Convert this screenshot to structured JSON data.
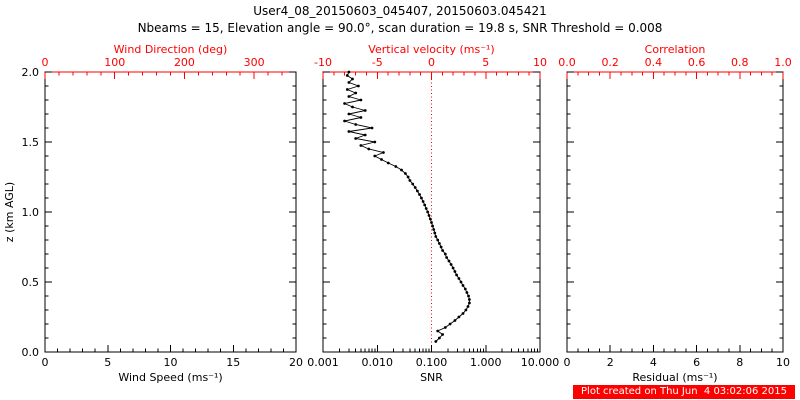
{
  "title": "User4_08_20150603_045407, 20150603.045421",
  "subtitle": "Nbeams = 15, Elevation angle = 90.0°, scan duration = 19.8 s, SNR Threshold = 0.008",
  "footer": {
    "text": "Plot created on Thu Jun  4 03:02:06 2015"
  },
  "colors": {
    "axis": "#000000",
    "secondary": "#ff0000",
    "footer_bg": "#ff0000",
    "footer_fg": "#ffffff"
  },
  "chart_data": [
    {
      "type": "line",
      "panel": "wind-speed",
      "xlabel": "Wind Speed (ms⁻¹)",
      "x2label": "Wind Direction (deg)",
      "ylabel": "z (km AGL)",
      "xlim": [
        0,
        20
      ],
      "xticks": [
        0,
        5,
        10,
        15,
        20
      ],
      "xtick_labels": [
        "0",
        "5",
        "10",
        "15",
        "20"
      ],
      "xminor": 1,
      "x2lim": [
        0,
        360
      ],
      "x2ticks": [
        0,
        100,
        200,
        300
      ],
      "x2tick_labels": [
        "0",
        "100",
        "200",
        "300"
      ],
      "x2minor": 20,
      "ylim": [
        0,
        2
      ],
      "yticks": [
        0,
        0.5,
        1,
        1.5,
        2
      ],
      "ytick_labels": [
        "0.0",
        "0.5",
        "1.0",
        "1.5",
        "2.0"
      ],
      "yminor": 0.1,
      "series": []
    },
    {
      "type": "line",
      "panel": "snr",
      "xlabel": "SNR",
      "x2label": "Vertical velocity (ms⁻¹)",
      "xscale": "log",
      "xlim": [
        0.001,
        10
      ],
      "xticks": [
        0.001,
        0.01,
        0.1,
        1,
        10
      ],
      "xtick_labels": [
        "0.001",
        "0.010",
        "0.100",
        "1.000",
        "10.000"
      ],
      "x2lim": [
        -10,
        10
      ],
      "x2ticks": [
        -10,
        -5,
        0,
        5,
        10
      ],
      "x2tick_labels": [
        "-10",
        "-5",
        "0",
        "5",
        "10"
      ],
      "x2minor": 1,
      "ylim": [
        0,
        2
      ],
      "yticks": [
        0,
        0.5,
        1,
        1.5,
        2
      ],
      "yminor": 0.1,
      "refline": {
        "x": 0.1,
        "style": "dotted",
        "color": "#ff0000",
        "meaning": "vertical velocity = 0"
      },
      "series": [
        {
          "name": "snr-profile",
          "points_format": "[SNR, z_km]",
          "points": [
            [
              0.12,
              0.075
            ],
            [
              0.14,
              0.1
            ],
            [
              0.16,
              0.125
            ],
            [
              0.13,
              0.15
            ],
            [
              0.18,
              0.175
            ],
            [
              0.22,
              0.2
            ],
            [
              0.27,
              0.225
            ],
            [
              0.32,
              0.25
            ],
            [
              0.38,
              0.275
            ],
            [
              0.43,
              0.3
            ],
            [
              0.47,
              0.325
            ],
            [
              0.5,
              0.35
            ],
            [
              0.5,
              0.375
            ],
            [
              0.48,
              0.4
            ],
            [
              0.45,
              0.425
            ],
            [
              0.42,
              0.45
            ],
            [
              0.38,
              0.475
            ],
            [
              0.35,
              0.5
            ],
            [
              0.32,
              0.525
            ],
            [
              0.29,
              0.55
            ],
            [
              0.27,
              0.575
            ],
            [
              0.25,
              0.6
            ],
            [
              0.23,
              0.625
            ],
            [
              0.21,
              0.65
            ],
            [
              0.19,
              0.675
            ],
            [
              0.18,
              0.7
            ],
            [
              0.16,
              0.725
            ],
            [
              0.15,
              0.75
            ],
            [
              0.14,
              0.775
            ],
            [
              0.13,
              0.8
            ],
            [
              0.12,
              0.825
            ],
            [
              0.115,
              0.85
            ],
            [
              0.11,
              0.875
            ],
            [
              0.105,
              0.9
            ],
            [
              0.1,
              0.925
            ],
            [
              0.095,
              0.95
            ],
            [
              0.09,
              0.975
            ],
            [
              0.085,
              1.0
            ],
            [
              0.08,
              1.025
            ],
            [
              0.075,
              1.05
            ],
            [
              0.07,
              1.075
            ],
            [
              0.065,
              1.1
            ],
            [
              0.06,
              1.125
            ],
            [
              0.055,
              1.15
            ],
            [
              0.05,
              1.175
            ],
            [
              0.045,
              1.2
            ],
            [
              0.04,
              1.225
            ],
            [
              0.037,
              1.25
            ],
            [
              0.033,
              1.275
            ],
            [
              0.028,
              1.3
            ],
            [
              0.022,
              1.325
            ],
            [
              0.016,
              1.35
            ],
            [
              0.012,
              1.375
            ],
            [
              0.009,
              1.4
            ],
            [
              0.013,
              1.425
            ],
            [
              0.007,
              1.45
            ],
            [
              0.005,
              1.475
            ],
            [
              0.009,
              1.5
            ],
            [
              0.004,
              1.525
            ],
            [
              0.006,
              1.55
            ],
            [
              0.003,
              1.575
            ],
            [
              0.008,
              1.6
            ],
            [
              0.004,
              1.625
            ],
            [
              0.0025,
              1.65
            ],
            [
              0.005,
              1.675
            ],
            [
              0.003,
              1.7
            ],
            [
              0.006,
              1.725
            ],
            [
              0.0035,
              1.75
            ],
            [
              0.0025,
              1.775
            ],
            [
              0.005,
              1.8
            ],
            [
              0.003,
              1.825
            ],
            [
              0.004,
              1.85
            ],
            [
              0.0028,
              1.875
            ],
            [
              0.0045,
              1.9
            ],
            [
              0.003,
              1.925
            ],
            [
              0.0035,
              1.95
            ],
            [
              0.0028,
              1.975
            ],
            [
              0.003,
              2.0
            ]
          ]
        }
      ]
    },
    {
      "type": "line",
      "panel": "residual",
      "xlabel": "Residual (ms⁻¹)",
      "x2label": "Correlation",
      "xlim": [
        0,
        10
      ],
      "xticks": [
        0,
        2,
        4,
        6,
        8,
        10
      ],
      "xtick_labels": [
        "0",
        "2",
        "4",
        "6",
        "8",
        "10"
      ],
      "xminor": 0.5,
      "x2lim": [
        0,
        1
      ],
      "x2ticks": [
        0,
        0.2,
        0.4,
        0.6,
        0.8,
        1
      ],
      "x2tick_labels": [
        "0.0",
        "0.2",
        "0.4",
        "0.6",
        "0.8",
        "1.0"
      ],
      "x2minor": 0.05,
      "ylim": [
        0,
        2
      ],
      "yticks": [
        0,
        0.5,
        1,
        1.5,
        2
      ],
      "yminor": 0.1,
      "series": []
    }
  ]
}
